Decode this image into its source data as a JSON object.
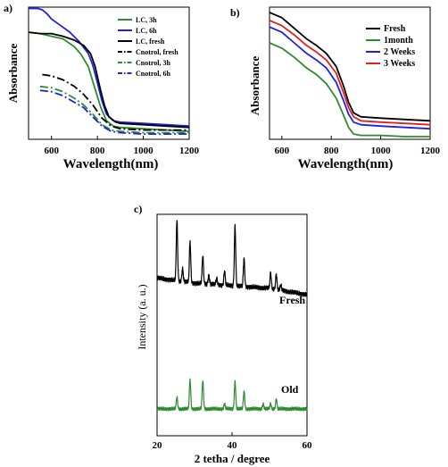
{
  "chart_data": [
    {
      "panel_label": "a)",
      "type": "line",
      "xlabel": "Wavelength(nm)",
      "ylabel": "Absorbance",
      "xlim": [
        500,
        1200
      ],
      "ylim": [
        0,
        1
      ],
      "xticks": [
        "600",
        "800",
        "1000",
        "1200"
      ],
      "y_tick_labels_shown": false,
      "legend_position": "top-right",
      "series": [
        {
          "name": "LC, 3h",
          "color": "#2e8b2e",
          "style": "solid",
          "points": [
            [
              500,
              0.81
            ],
            [
              550,
              0.8
            ],
            [
              600,
              0.78
            ],
            [
              650,
              0.76
            ],
            [
              700,
              0.7
            ],
            [
              730,
              0.64
            ],
            [
              760,
              0.55
            ],
            [
              790,
              0.38
            ],
            [
              815,
              0.24
            ],
            [
              840,
              0.14
            ],
            [
              870,
              0.1
            ],
            [
              900,
              0.09
            ],
            [
              1000,
              0.08
            ],
            [
              1100,
              0.07
            ],
            [
              1200,
              0.06
            ]
          ]
        },
        {
          "name": "LC, 6h",
          "color": "#1f1fe6",
          "style": "solid",
          "points": [
            [
              500,
              0.99
            ],
            [
              540,
              0.99
            ],
            [
              560,
              0.98
            ],
            [
              580,
              0.95
            ],
            [
              600,
              0.91
            ],
            [
              640,
              0.86
            ],
            [
              680,
              0.81
            ],
            [
              720,
              0.74
            ],
            [
              760,
              0.65
            ],
            [
              780,
              0.56
            ],
            [
              800,
              0.43
            ],
            [
              820,
              0.29
            ],
            [
              840,
              0.19
            ],
            [
              870,
              0.14
            ],
            [
              900,
              0.13
            ],
            [
              1000,
              0.12
            ],
            [
              1100,
              0.11
            ],
            [
              1200,
              0.1
            ]
          ]
        },
        {
          "name": "LC, fresh",
          "color": "#000000",
          "style": "solid",
          "points": [
            [
              500,
              0.81
            ],
            [
              550,
              0.8
            ],
            [
              600,
              0.8
            ],
            [
              650,
              0.78
            ],
            [
              700,
              0.75
            ],
            [
              740,
              0.71
            ],
            [
              770,
              0.65
            ],
            [
              790,
              0.55
            ],
            [
              810,
              0.4
            ],
            [
              830,
              0.26
            ],
            [
              850,
              0.17
            ],
            [
              880,
              0.13
            ],
            [
              900,
              0.12
            ],
            [
              1000,
              0.11
            ],
            [
              1100,
              0.1
            ],
            [
              1200,
              0.09
            ]
          ]
        },
        {
          "name": "Cnotrol, fresh",
          "color": "#000000",
          "style": "dashdot",
          "points": [
            [
              560,
              0.49
            ],
            [
              600,
              0.48
            ],
            [
              650,
              0.45
            ],
            [
              700,
              0.4
            ],
            [
              740,
              0.34
            ],
            [
              780,
              0.26
            ],
            [
              820,
              0.16
            ],
            [
              860,
              0.1
            ],
            [
              900,
              0.08
            ],
            [
              1000,
              0.07
            ],
            [
              1100,
              0.07
            ],
            [
              1200,
              0.07
            ]
          ]
        },
        {
          "name": "Cnotrol, 3h",
          "color": "#2e8b2e",
          "style": "dashdot",
          "points": [
            [
              550,
              0.4
            ],
            [
              600,
              0.39
            ],
            [
              650,
              0.36
            ],
            [
              700,
              0.31
            ],
            [
              740,
              0.26
            ],
            [
              780,
              0.19
            ],
            [
              820,
              0.11
            ],
            [
              860,
              0.07
            ],
            [
              900,
              0.06
            ],
            [
              1000,
              0.05
            ],
            [
              1100,
              0.05
            ],
            [
              1200,
              0.05
            ]
          ]
        },
        {
          "name": "Cnotrol, 6h",
          "color": "#1f1fe6",
          "style": "dashdot",
          "points": [
            [
              550,
              0.37
            ],
            [
              600,
              0.36
            ],
            [
              650,
              0.33
            ],
            [
              700,
              0.28
            ],
            [
              740,
              0.24
            ],
            [
              780,
              0.17
            ],
            [
              820,
              0.1
            ],
            [
              860,
              0.06
            ],
            [
              900,
              0.05
            ],
            [
              1000,
              0.04
            ],
            [
              1100,
              0.04
            ],
            [
              1200,
              0.04
            ]
          ]
        }
      ]
    },
    {
      "panel_label": "b)",
      "type": "line",
      "xlabel": "Wavelength(nm)",
      "ylabel": "Absorbance",
      "xlim": [
        550,
        1200
      ],
      "ylim": [
        0,
        1
      ],
      "xticks": [
        "600",
        "800",
        "1000",
        "1200"
      ],
      "y_tick_labels_shown": false,
      "legend_position": "top-right",
      "series": [
        {
          "name": "Fresh",
          "color": "#000000",
          "style": "solid",
          "points": [
            [
              550,
              0.96
            ],
            [
              600,
              0.92
            ],
            [
              650,
              0.84
            ],
            [
              700,
              0.76
            ],
            [
              740,
              0.71
            ],
            [
              780,
              0.65
            ],
            [
              820,
              0.55
            ],
            [
              850,
              0.4
            ],
            [
              870,
              0.28
            ],
            [
              890,
              0.2
            ],
            [
              920,
              0.17
            ],
            [
              1000,
              0.16
            ],
            [
              1100,
              0.15
            ],
            [
              1200,
              0.14
            ]
          ]
        },
        {
          "name": "1month",
          "color": "#2e8b2e",
          "style": "solid",
          "points": [
            [
              550,
              0.73
            ],
            [
              600,
              0.69
            ],
            [
              650,
              0.62
            ],
            [
              700,
              0.54
            ],
            [
              740,
              0.49
            ],
            [
              780,
              0.42
            ],
            [
              820,
              0.31
            ],
            [
              850,
              0.18
            ],
            [
              870,
              0.09
            ],
            [
              890,
              0.04
            ],
            [
              920,
              0.03
            ],
            [
              1000,
              0.03
            ],
            [
              1100,
              0.02
            ],
            [
              1200,
              0.02
            ]
          ]
        },
        {
          "name": "2 Weeks",
          "color": "#1f1fe6",
          "style": "solid",
          "points": [
            [
              550,
              0.85
            ],
            [
              600,
              0.81
            ],
            [
              650,
              0.73
            ],
            [
              700,
              0.65
            ],
            [
              740,
              0.6
            ],
            [
              780,
              0.54
            ],
            [
              820,
              0.43
            ],
            [
              850,
              0.29
            ],
            [
              870,
              0.19
            ],
            [
              890,
              0.13
            ],
            [
              920,
              0.11
            ],
            [
              1000,
              0.1
            ],
            [
              1100,
              0.09
            ],
            [
              1200,
              0.08
            ]
          ]
        },
        {
          "name": "3 Weeks",
          "color": "#e61e1e",
          "style": "solid",
          "points": [
            [
              550,
              0.9
            ],
            [
              600,
              0.86
            ],
            [
              650,
              0.79
            ],
            [
              700,
              0.71
            ],
            [
              740,
              0.66
            ],
            [
              780,
              0.6
            ],
            [
              820,
              0.5
            ],
            [
              850,
              0.35
            ],
            [
              870,
              0.24
            ],
            [
              890,
              0.17
            ],
            [
              920,
              0.14
            ],
            [
              1000,
              0.13
            ],
            [
              1100,
              0.12
            ],
            [
              1200,
              0.11
            ]
          ]
        }
      ]
    },
    {
      "panel_label": "c)",
      "type": "line",
      "xlabel": "2 tetha / degree",
      "ylabel": "Intensity (a. u.)",
      "xlim": [
        20,
        60
      ],
      "ylim": [
        0,
        1
      ],
      "xticks": [
        "20",
        "40",
        "60"
      ],
      "y_tick_labels_shown": false,
      "annotations": [
        "Fresh",
        "Old"
      ],
      "series": [
        {
          "name": "Fresh",
          "color": "#000000",
          "style": "solid",
          "baseline": [
            [
              20,
              0.56
            ],
            [
              30,
              0.52
            ],
            [
              40,
              0.5
            ],
            [
              50,
              0.48
            ],
            [
              60,
              0.43
            ]
          ],
          "peaks": [
            [
              25.3,
              0.47
            ],
            [
              26.8,
              0.1
            ],
            [
              28.8,
              0.32
            ],
            [
              32.2,
              0.22
            ],
            [
              33.8,
              0.07
            ],
            [
              35.9,
              0.05
            ],
            [
              38.0,
              0.11
            ],
            [
              40.8,
              0.47
            ],
            [
              43.2,
              0.22
            ],
            [
              50.3,
              0.12
            ],
            [
              51.8,
              0.12
            ],
            [
              53.0,
              0.04
            ]
          ]
        },
        {
          "name": "Old",
          "color": "#2e8b2e",
          "style": "solid",
          "baseline": [
            [
              20,
              0.11
            ],
            [
              60,
              0.11
            ]
          ],
          "peaks": [
            [
              25.3,
              0.12
            ],
            [
              28.8,
              0.3
            ],
            [
              32.2,
              0.29
            ],
            [
              38.0,
              0.05
            ],
            [
              40.8,
              0.28
            ],
            [
              43.2,
              0.18
            ],
            [
              48.3,
              0.05
            ],
            [
              50.3,
              0.05
            ],
            [
              51.8,
              0.1
            ]
          ]
        }
      ]
    }
  ]
}
